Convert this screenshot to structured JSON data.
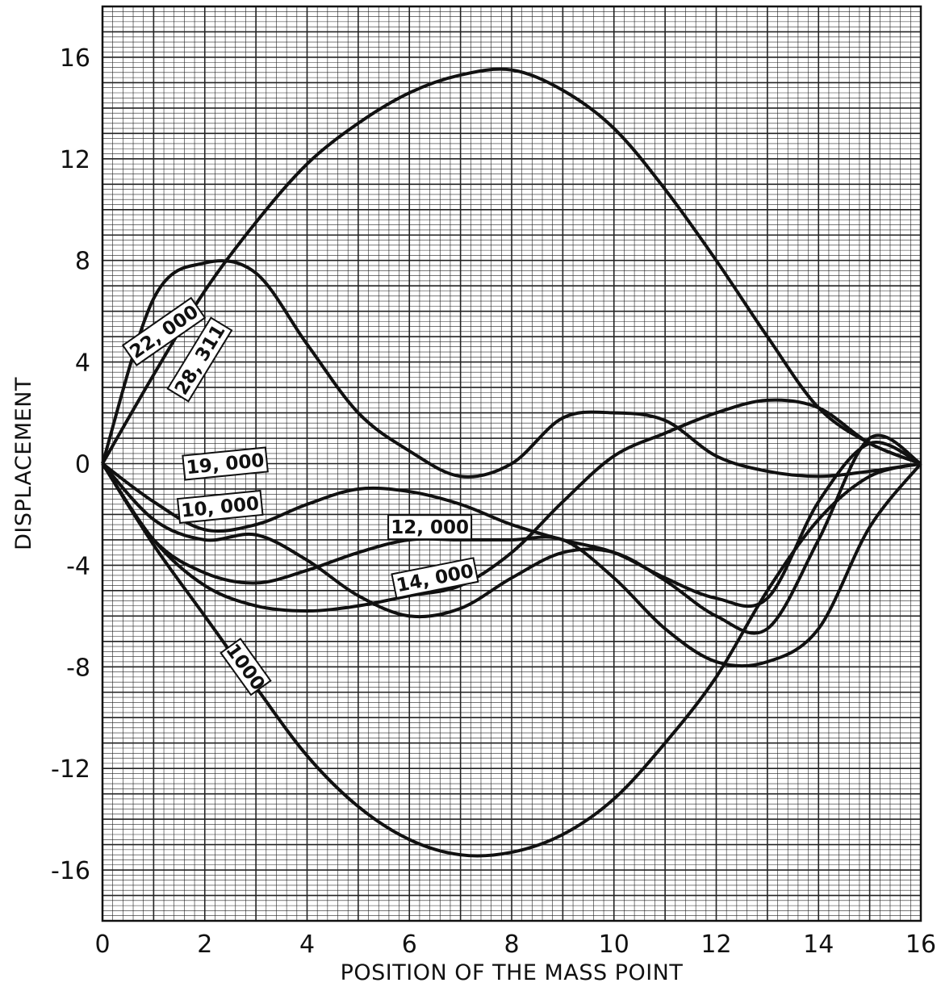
{
  "chart_data": {
    "type": "line",
    "title": "",
    "xlabel": "POSITION OF THE MASS POINT",
    "ylabel": "DISPLACEMENT",
    "xlim": [
      0,
      16
    ],
    "ylim": [
      -18,
      18
    ],
    "grid": true,
    "x_ticks": [
      "0",
      "2",
      "4",
      "6",
      "8",
      "10",
      "12",
      "14",
      "16"
    ],
    "y_ticks": [
      "16",
      "12",
      "8",
      "4",
      "0",
      "-4",
      "-8",
      "-12",
      "-16"
    ],
    "x_tick_values": [
      0,
      2,
      4,
      6,
      8,
      10,
      12,
      14,
      16
    ],
    "y_tick_values": [
      16,
      12,
      8,
      4,
      0,
      -4,
      -8,
      -12,
      -16
    ],
    "x": [
      0,
      1,
      2,
      3,
      4,
      5,
      6,
      7,
      8,
      9,
      10,
      11,
      12,
      13,
      14,
      15,
      16
    ],
    "series": [
      {
        "name": "28, 311",
        "label_at": [
          1.9,
          4.1
        ],
        "values": [
          0,
          3.5,
          6.8,
          9.5,
          11.8,
          13.4,
          14.6,
          15.3,
          15.5,
          14.7,
          13.2,
          10.8,
          8.0,
          5.0,
          2.2,
          0.8,
          0
        ]
      },
      {
        "name": "22, 000",
        "label_at": [
          1.2,
          5.2
        ],
        "values": [
          0,
          6.5,
          7.9,
          7.5,
          4.7,
          2.0,
          0.5,
          -0.5,
          0.0,
          1.8,
          2.0,
          1.7,
          0.3,
          -0.3,
          -0.5,
          -0.3,
          0
        ]
      },
      {
        "name": "19, 000",
        "label_at": [
          2.4,
          0.0
        ],
        "values": [
          0,
          -1.5,
          -2.6,
          -2.4,
          -1.6,
          -1.0,
          -1.1,
          -1.6,
          -2.4,
          -3.0,
          -3.5,
          -4.5,
          -5.3,
          -5.3,
          -1.5,
          0.8,
          0
        ]
      },
      {
        "name": "10, 000",
        "label_at": [
          2.3,
          -1.7
        ],
        "values": [
          0,
          -2.2,
          -3.0,
          -2.8,
          -3.8,
          -5.2,
          -6.0,
          -5.7,
          -4.5,
          -3.5,
          -3.5,
          -4.6,
          -6.0,
          -6.5,
          -3.0,
          1.0,
          0
        ]
      },
      {
        "name": "12, 000",
        "label_at": [
          6.4,
          -2.5
        ],
        "values": [
          0,
          -3.0,
          -4.3,
          -4.7,
          -4.2,
          -3.5,
          -3.0,
          -3.0,
          -3.0,
          -3.0,
          -4.5,
          -6.5,
          -7.8,
          -7.8,
          -6.5,
          -2.5,
          0
        ]
      },
      {
        "name": "14, 000",
        "label_at": [
          6.5,
          -4.5
        ],
        "values": [
          0,
          -3.0,
          -4.8,
          -5.6,
          -5.8,
          -5.6,
          -5.2,
          -4.8,
          -3.5,
          -1.5,
          0.3,
          1.2,
          2.0,
          2.5,
          2.2,
          0.8,
          0
        ]
      },
      {
        "name": "1000",
        "label_at": [
          2.8,
          -8.0
        ],
        "values": [
          0,
          -3.2,
          -6.0,
          -8.8,
          -11.5,
          -13.5,
          -14.8,
          -15.4,
          -15.3,
          -14.6,
          -13.2,
          -11.0,
          -8.4,
          -5.0,
          -2.2,
          -0.5,
          0
        ]
      }
    ]
  }
}
